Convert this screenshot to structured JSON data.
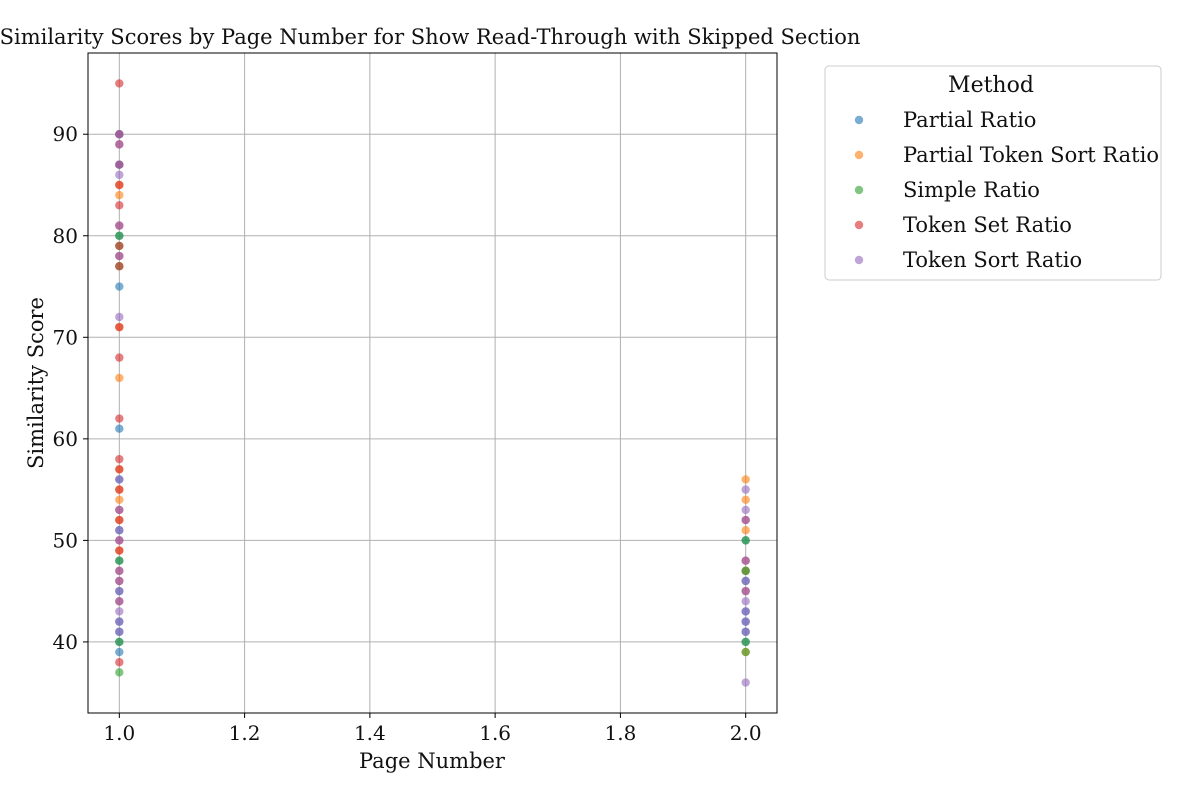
{
  "chart_data": {
    "type": "scatter",
    "title": "Similarity Scores by Page Number for Show Read-Through with Skipped Section",
    "xlabel": "Page Number",
    "ylabel": "Similarity Score",
    "xlim": [
      0.95,
      2.05
    ],
    "ylim": [
      33,
      98
    ],
    "xticks": [
      1.0,
      1.2,
      1.4,
      1.6,
      1.8,
      2.0
    ],
    "yticks": [
      40,
      50,
      60,
      70,
      80,
      90
    ],
    "grid": true,
    "legend": {
      "title": "Method",
      "placement": "outside-top-right"
    },
    "series": [
      {
        "name": "Partial Ratio",
        "color": "#1f77b4",
        "points": [
          {
            "x": 1,
            "y": 75
          },
          {
            "x": 1,
            "y": 61
          },
          {
            "x": 1,
            "y": 90
          },
          {
            "x": 1,
            "y": 87
          },
          {
            "x": 1,
            "y": 80
          },
          {
            "x": 1,
            "y": 56
          },
          {
            "x": 1,
            "y": 51
          },
          {
            "x": 1,
            "y": 48
          },
          {
            "x": 1,
            "y": 45
          },
          {
            "x": 1,
            "y": 42
          },
          {
            "x": 1,
            "y": 41
          },
          {
            "x": 1,
            "y": 40
          },
          {
            "x": 1,
            "y": 39
          },
          {
            "x": 2,
            "y": 50
          },
          {
            "x": 2,
            "y": 47
          },
          {
            "x": 2,
            "y": 46
          },
          {
            "x": 2,
            "y": 43
          },
          {
            "x": 2,
            "y": 42
          },
          {
            "x": 2,
            "y": 41
          },
          {
            "x": 2,
            "y": 40
          }
        ]
      },
      {
        "name": "Partial Token Sort Ratio",
        "color": "#ff7f0e",
        "points": [
          {
            "x": 1,
            "y": 84
          },
          {
            "x": 1,
            "y": 85
          },
          {
            "x": 1,
            "y": 71
          },
          {
            "x": 1,
            "y": 66
          },
          {
            "x": 1,
            "y": 57
          },
          {
            "x": 1,
            "y": 55
          },
          {
            "x": 1,
            "y": 54
          },
          {
            "x": 1,
            "y": 52
          },
          {
            "x": 1,
            "y": 49
          },
          {
            "x": 2,
            "y": 56
          },
          {
            "x": 2,
            "y": 54
          },
          {
            "x": 2,
            "y": 51
          },
          {
            "x": 2,
            "y": 47
          },
          {
            "x": 2,
            "y": 39
          }
        ]
      },
      {
        "name": "Simple Ratio",
        "color": "#2ca02c",
        "points": [
          {
            "x": 1,
            "y": 80
          },
          {
            "x": 1,
            "y": 79
          },
          {
            "x": 1,
            "y": 77
          },
          {
            "x": 1,
            "y": 48
          },
          {
            "x": 1,
            "y": 40
          },
          {
            "x": 1,
            "y": 37
          },
          {
            "x": 2,
            "y": 50
          },
          {
            "x": 2,
            "y": 47
          },
          {
            "x": 2,
            "y": 40
          },
          {
            "x": 2,
            "y": 39
          }
        ]
      },
      {
        "name": "Token Set Ratio",
        "color": "#d62728",
        "points": [
          {
            "x": 1,
            "y": 95
          },
          {
            "x": 1,
            "y": 90
          },
          {
            "x": 1,
            "y": 89
          },
          {
            "x": 1,
            "y": 87
          },
          {
            "x": 1,
            "y": 85
          },
          {
            "x": 1,
            "y": 83
          },
          {
            "x": 1,
            "y": 81
          },
          {
            "x": 1,
            "y": 79
          },
          {
            "x": 1,
            "y": 78
          },
          {
            "x": 1,
            "y": 77
          },
          {
            "x": 1,
            "y": 71
          },
          {
            "x": 1,
            "y": 68
          },
          {
            "x": 1,
            "y": 62
          },
          {
            "x": 1,
            "y": 58
          },
          {
            "x": 1,
            "y": 57
          },
          {
            "x": 1,
            "y": 55
          },
          {
            "x": 1,
            "y": 53
          },
          {
            "x": 1,
            "y": 52
          },
          {
            "x": 1,
            "y": 50
          },
          {
            "x": 1,
            "y": 49
          },
          {
            "x": 1,
            "y": 47
          },
          {
            "x": 1,
            "y": 46
          },
          {
            "x": 1,
            "y": 44
          },
          {
            "x": 1,
            "y": 38
          },
          {
            "x": 2,
            "y": 52
          },
          {
            "x": 2,
            "y": 48
          },
          {
            "x": 2,
            "y": 45
          }
        ]
      },
      {
        "name": "Token Sort Ratio",
        "color": "#9467bd",
        "points": [
          {
            "x": 1,
            "y": 90
          },
          {
            "x": 1,
            "y": 89
          },
          {
            "x": 1,
            "y": 87
          },
          {
            "x": 1,
            "y": 86
          },
          {
            "x": 1,
            "y": 81
          },
          {
            "x": 1,
            "y": 78
          },
          {
            "x": 1,
            "y": 72
          },
          {
            "x": 1,
            "y": 56
          },
          {
            "x": 1,
            "y": 53
          },
          {
            "x": 1,
            "y": 51
          },
          {
            "x": 1,
            "y": 50
          },
          {
            "x": 1,
            "y": 47
          },
          {
            "x": 1,
            "y": 46
          },
          {
            "x": 1,
            "y": 45
          },
          {
            "x": 1,
            "y": 44
          },
          {
            "x": 1,
            "y": 43
          },
          {
            "x": 1,
            "y": 42
          },
          {
            "x": 1,
            "y": 41
          },
          {
            "x": 2,
            "y": 55
          },
          {
            "x": 2,
            "y": 53
          },
          {
            "x": 2,
            "y": 52
          },
          {
            "x": 2,
            "y": 48
          },
          {
            "x": 2,
            "y": 46
          },
          {
            "x": 2,
            "y": 45
          },
          {
            "x": 2,
            "y": 44
          },
          {
            "x": 2,
            "y": 43
          },
          {
            "x": 2,
            "y": 42
          },
          {
            "x": 2,
            "y": 41
          },
          {
            "x": 2,
            "y": 36
          }
        ]
      }
    ]
  }
}
